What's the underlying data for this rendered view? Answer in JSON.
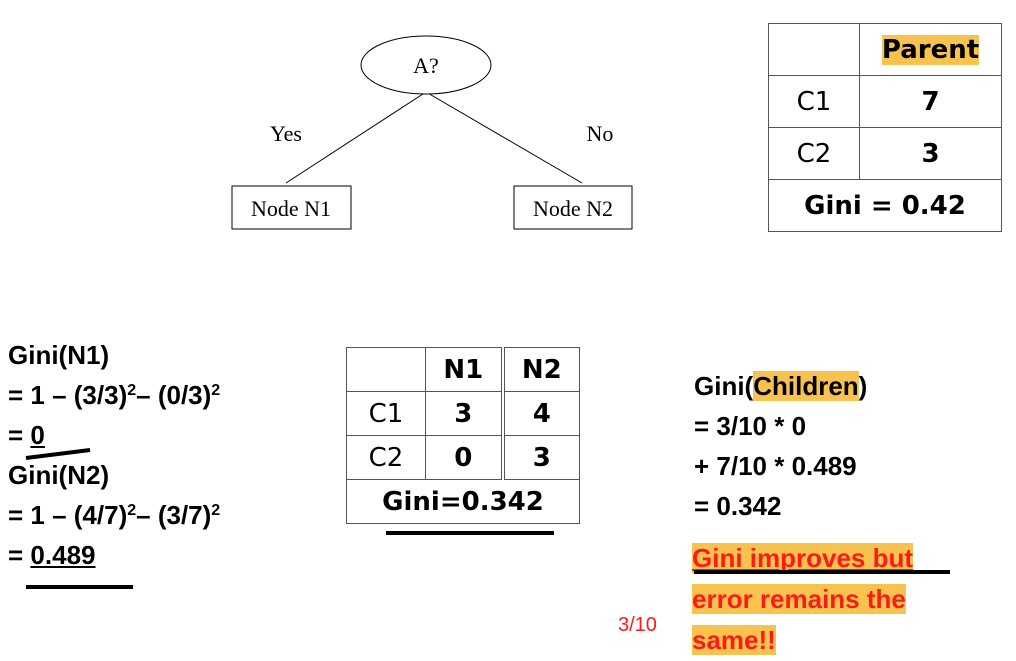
{
  "tree": {
    "root": "A?",
    "yes": "Yes",
    "no": "No",
    "left": "Node N1",
    "right": "Node N2"
  },
  "parent_table": {
    "header": "Parent",
    "rows": [
      {
        "label": "C1",
        "value": "7"
      },
      {
        "label": "C2",
        "value": "3"
      }
    ],
    "gini": "Gini = 0.42"
  },
  "split_table": {
    "headers": [
      "N1",
      "N2"
    ],
    "rows": [
      {
        "label": "C1",
        "n1": "3",
        "n2": "4"
      },
      {
        "label": "C2",
        "n1": "0",
        "n2": "3"
      }
    ],
    "gini": "Gini=0.342"
  },
  "n1_calc": {
    "title": "Gini(N1)",
    "line1_a": "= 1 – (3/3)",
    "line1_b": "– (0/3)",
    "exp": "2",
    "result_prefix": "= ",
    "result": "0"
  },
  "n2_calc": {
    "title": "Gini(N2)",
    "line1_a": "= 1 – (4/7)",
    "line1_b": "– (3/7)",
    "exp": "2",
    "result_prefix": "= ",
    "result": "0.489"
  },
  "children_calc": {
    "title_a": "Gini(",
    "title_hl": "Children",
    "title_b": ")",
    "lines": [
      "= 3/10 * 0",
      "+ 7/10 * 0.489",
      "= 0.342"
    ]
  },
  "note": {
    "line1": "Gini improves but",
    "line2": "error remains the",
    "line3": "same!!"
  },
  "page_number": "3/10",
  "colors": {
    "highlight": "#f7c34e",
    "red": "#ff1a1a"
  }
}
